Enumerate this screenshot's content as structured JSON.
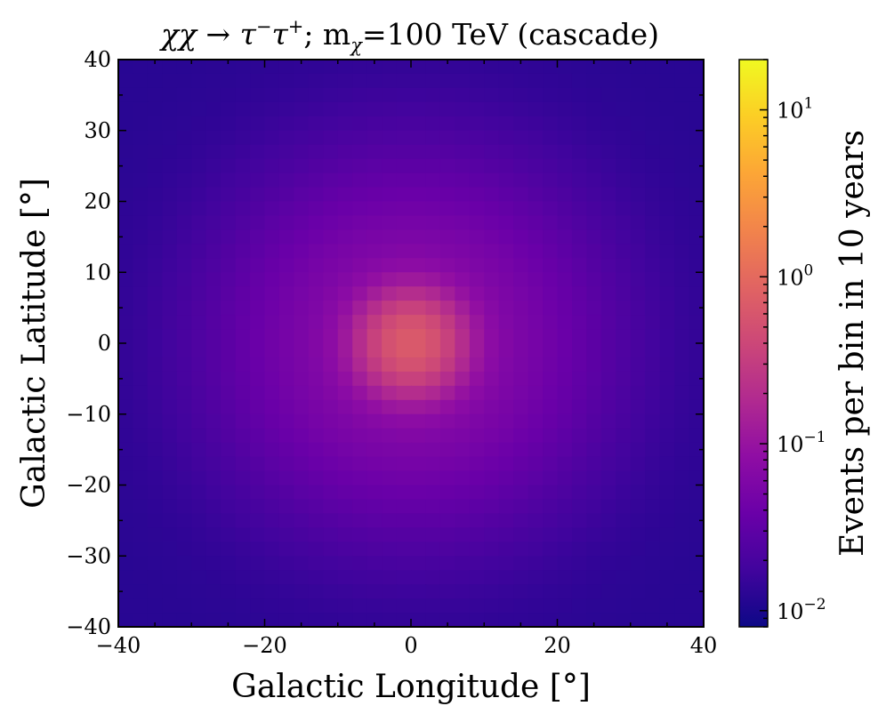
{
  "chart_data": {
    "type": "heatmap",
    "title": "χχ → τ⁻τ⁺; m_χ=100 TeV (cascade)",
    "title_parts": {
      "prefix": "χχ → τ",
      "sup1": "−",
      "mid1": "τ",
      "sup2": "+",
      "mid2": "; m",
      "sub": "χ",
      "suffix": "=100 TeV (cascade)"
    },
    "xlabel": "Galactic Longitude [°]",
    "ylabel": "Galactic Latitude [°]",
    "xlim": [
      -40,
      40
    ],
    "ylim": [
      -40,
      40
    ],
    "x_ticks": [
      -40,
      -20,
      0,
      20,
      40
    ],
    "x_tick_labels": [
      "−40",
      "−20",
      "0",
      "20",
      "40"
    ],
    "y_ticks": [
      -40,
      -30,
      -20,
      -10,
      0,
      10,
      20,
      30,
      40
    ],
    "y_tick_labels": [
      "−40",
      "−30",
      "−20",
      "−10",
      "0",
      "10",
      "20",
      "30",
      "40"
    ],
    "colorbar": {
      "label": "Events per bin in 10 years",
      "scale": "log",
      "colormap": "plasma",
      "range": [
        0.008,
        20
      ],
      "ticks": [
        0.01,
        0.1,
        1,
        10
      ],
      "tick_labels": [
        {
          "base": "10",
          "exp": "−2"
        },
        {
          "base": "10",
          "exp": "−1"
        },
        {
          "base": "10",
          "exp": "0"
        },
        {
          "base": "10",
          "exp": "1"
        }
      ]
    },
    "field": {
      "bins_per_axis": 40,
      "peak_value": 0.6,
      "peak_location": [
        0,
        0
      ],
      "background_value": 0.012,
      "core_width_deg": 4,
      "halo_width_deg": 15,
      "halo_amplitude": 0.07
    },
    "grid": false
  }
}
